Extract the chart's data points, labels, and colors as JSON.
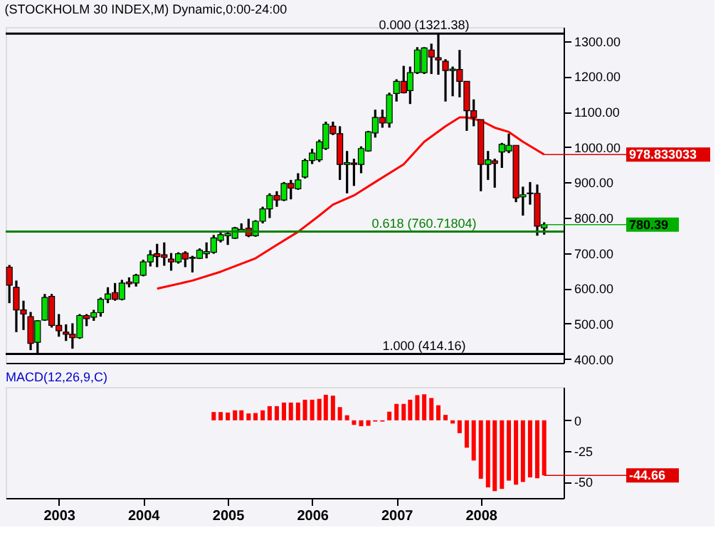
{
  "chart_data": [
    {
      "type": "candlestick",
      "title": "(STOCKHOLM 30 INDEX,M) Dynamic,0:00-24:00",
      "x": [
        "2002-06",
        "2002-07",
        "2002-08",
        "2002-09",
        "2002-10",
        "2002-11",
        "2002-12",
        "2003-01",
        "2003-02",
        "2003-03",
        "2003-04",
        "2003-05",
        "2003-06",
        "2003-07",
        "2003-08",
        "2003-09",
        "2003-10",
        "2003-11",
        "2003-12",
        "2004-01",
        "2004-02",
        "2004-03",
        "2004-04",
        "2004-05",
        "2004-06",
        "2004-07",
        "2004-08",
        "2004-09",
        "2004-10",
        "2004-11",
        "2004-12",
        "2005-01",
        "2005-02",
        "2005-03",
        "2005-04",
        "2005-05",
        "2005-06",
        "2005-07",
        "2005-08",
        "2005-09",
        "2005-10",
        "2005-11",
        "2005-12",
        "2006-01",
        "2006-02",
        "2006-03",
        "2006-04",
        "2006-05",
        "2006-06",
        "2006-07",
        "2006-08",
        "2006-09",
        "2006-10",
        "2006-11",
        "2006-12",
        "2007-01",
        "2007-02",
        "2007-03",
        "2007-04",
        "2007-05",
        "2007-06",
        "2007-07",
        "2007-08",
        "2007-09",
        "2007-10",
        "2007-11",
        "2007-12",
        "2008-01",
        "2008-02",
        "2008-03",
        "2008-04",
        "2008-05",
        "2008-06",
        "2008-07",
        "2008-08",
        "2008-09",
        "2008-10"
      ],
      "ohlc": [
        [
          660,
          666,
          558,
          609
        ],
        [
          603,
          622,
          476,
          539
        ],
        [
          539,
          565,
          482,
          527
        ],
        [
          520,
          533,
          425,
          444
        ],
        [
          447,
          510,
          414.16,
          508
        ],
        [
          510,
          584,
          508,
          574
        ],
        [
          577,
          584,
          489,
          495
        ],
        [
          495,
          527,
          463,
          480
        ],
        [
          476,
          498,
          451,
          470
        ],
        [
          470,
          501,
          429,
          460
        ],
        [
          460,
          527,
          457,
          523
        ],
        [
          523,
          527,
          493,
          514
        ],
        [
          518,
          539,
          508,
          531
        ],
        [
          531,
          574,
          520,
          569
        ],
        [
          569,
          603,
          558,
          584
        ],
        [
          588,
          615,
          565,
          569
        ],
        [
          569,
          624,
          566,
          615
        ],
        [
          618,
          631,
          603,
          613
        ],
        [
          615,
          641,
          605,
          637
        ],
        [
          637,
          681,
          634,
          675
        ],
        [
          675,
          708,
          662,
          695
        ],
        [
          698,
          726,
          660,
          690
        ],
        [
          695,
          730,
          664,
          688
        ],
        [
          683,
          700,
          650,
          675
        ],
        [
          675,
          702,
          670,
          698
        ],
        [
          700,
          705,
          660,
          683
        ],
        [
          685,
          692,
          645,
          688
        ],
        [
          685,
          713,
          683,
          708
        ],
        [
          698,
          730,
          685,
          704
        ],
        [
          702,
          751,
          698,
          743
        ],
        [
          736,
          761,
          730,
          752
        ],
        [
          749,
          759,
          723,
          755
        ],
        [
          742,
          774,
          740,
          771
        ],
        [
          761,
          784,
          759,
          767
        ],
        [
          770,
          797,
          745,
          749
        ],
        [
          749,
          793,
          746,
          790
        ],
        [
          790,
          831,
          784,
          825
        ],
        [
          825,
          869,
          799,
          863
        ],
        [
          863,
          875,
          831,
          850
        ],
        [
          850,
          901,
          847,
          897
        ],
        [
          897,
          907,
          852,
          884
        ],
        [
          882,
          926,
          879,
          907
        ],
        [
          915,
          967,
          911,
          962
        ],
        [
          962,
          995,
          952,
          983
        ],
        [
          964,
          1021,
          958,
          1015
        ],
        [
          996,
          1072,
          992,
          1065
        ],
        [
          1059,
          1072,
          1034,
          1038
        ],
        [
          1038,
          1059,
          907,
          951
        ],
        [
          951,
          989,
          869,
          956
        ],
        [
          955,
          967,
          890,
          951
        ],
        [
          951,
          1002,
          926,
          996
        ],
        [
          989,
          1046,
          987,
          1043
        ],
        [
          1040,
          1106,
          1027,
          1084
        ],
        [
          1084,
          1106,
          1055,
          1068
        ],
        [
          1068,
          1154,
          1055,
          1148
        ],
        [
          1152,
          1192,
          1129,
          1186
        ],
        [
          1186,
          1230,
          1152,
          1154
        ],
        [
          1160,
          1228,
          1122,
          1211
        ],
        [
          1211,
          1283,
          1207,
          1275
        ],
        [
          1211,
          1283,
          1207,
          1281
        ],
        [
          1275,
          1293,
          1207,
          1255
        ],
        [
          1253,
          1321.38,
          1205,
          1247
        ],
        [
          1243,
          1249,
          1129,
          1217
        ],
        [
          1217,
          1228,
          1144,
          1221
        ],
        [
          1220,
          1275,
          1141,
          1186
        ],
        [
          1186,
          1186,
          1046,
          1103
        ],
        [
          1103,
          1135,
          1059,
          1084
        ],
        [
          1078,
          1078,
          875,
          951
        ],
        [
          951,
          989,
          907,
          964
        ],
        [
          961,
          967,
          885,
          954
        ],
        [
          986,
          1012,
          941,
          1008
        ],
        [
          989,
          1038,
          983,
          1005
        ],
        [
          1005,
          1005,
          844,
          856
        ],
        [
          859,
          888,
          806,
          865
        ],
        [
          870,
          901,
          837,
          868
        ],
        [
          869,
          894,
          749,
          776
        ],
        [
          771,
          787,
          752,
          780.39
        ]
      ],
      "colors": [
        "#e00000",
        "#e00000",
        "#e00000",
        "#e00000",
        "#00e000",
        "#00e000",
        "#e00000",
        "#e00000",
        "#e00000",
        "#e00000",
        "#00e000",
        "#e00000",
        "#00e000",
        "#00e000",
        "#00e000",
        "#e00000",
        "#00e000",
        "#e00000",
        "#00e000",
        "#00e000",
        "#00e000",
        "#e00000",
        "#e00000",
        "#e00000",
        "#00e000",
        "#e00000",
        "#00e000",
        "#00e000",
        "#00e000",
        "#00e000",
        "#00e000",
        "#00e000",
        "#00e000",
        "#00e000",
        "#e00000",
        "#00e000",
        "#00e000",
        "#00e000",
        "#e00000",
        "#00e000",
        "#e00000",
        "#00e000",
        "#00e000",
        "#00e000",
        "#00e000",
        "#00e000",
        "#e00000",
        "#e00000",
        "#00e000",
        "#e00000",
        "#00e000",
        "#00e000",
        "#00e000",
        "#e00000",
        "#00e000",
        "#00e000",
        "#e00000",
        "#00e000",
        "#00e000",
        "#00e000",
        "#e00000",
        "#e00000",
        "#e00000",
        "#00e000",
        "#e00000",
        "#e00000",
        "#e00000",
        "#e00000",
        "#00e000",
        "#e00000",
        "#00e000",
        "#00e000",
        "#e00000",
        "#00e000",
        "#e00000",
        "#e00000",
        "#00e000"
      ],
      "series": [
        {
          "type": "line",
          "color": "#ff0000",
          "x": [
            "2004-03",
            "2004-08",
            "2004-12",
            "2005-05",
            "2005-08",
            "2005-11",
            "2006-02",
            "2006-04",
            "2006-07",
            "2006-10",
            "2007-02",
            "2007-05",
            "2007-08",
            "2007-10",
            "2007-11",
            "2008-01",
            "2008-03",
            "2008-05",
            "2008-07",
            "2008-10"
          ],
          "values": [
            599,
            622,
            647,
            685,
            723,
            760,
            806,
            837,
            863,
            901,
            951,
            1015,
            1059,
            1084,
            1084,
            1075,
            1055,
            1043,
            1015,
            978.833033
          ]
        }
      ],
      "xlim": [
        "2002-05-16",
        "2008-12-24"
      ],
      "ylim": [
        389,
        1340
      ],
      "yticks": [
        {
          "value": 400,
          "label": "400.00"
        },
        {
          "value": 500,
          "label": "500.00"
        },
        {
          "value": 600,
          "label": "600.00"
        },
        {
          "value": 700,
          "label": "700.00"
        },
        {
          "value": 800,
          "label": "800.00"
        },
        {
          "value": 900,
          "label": "900.00"
        },
        {
          "value": 1000,
          "label": "1000.00"
        },
        {
          "value": 1100,
          "label": "1100.00"
        },
        {
          "value": 1200,
          "label": "1200.00"
        },
        {
          "value": 1300,
          "label": "1300.00"
        }
      ],
      "tick_labels": "y",
      "grid": false,
      "ref_lines": [
        {
          "axis": "y",
          "value": 1321.38,
          "label": "0.000 (1321.38)",
          "color": "#000000"
        },
        {
          "axis": "y",
          "value": 760.71804,
          "label": "0.618 (760.71804)",
          "color": "#008000"
        },
        {
          "axis": "y",
          "value": 414.16,
          "label": "1.000 (414.16)",
          "color": "#000000"
        }
      ],
      "annotations": [
        {
          "text": "978.833033",
          "x": "2008-10",
          "y": 978.833033
        },
        {
          "text": "780.39",
          "x": "2008-10",
          "y": 780.39
        }
      ]
    },
    {
      "type": "bar",
      "title": "MACD(12,26,9,C)",
      "x": [
        "2004-11",
        "2004-12",
        "2005-01",
        "2005-02",
        "2005-03",
        "2005-04",
        "2005-05",
        "2005-06",
        "2005-07",
        "2005-08",
        "2005-09",
        "2005-10",
        "2005-11",
        "2005-12",
        "2006-01",
        "2006-02",
        "2006-03",
        "2006-04",
        "2006-05",
        "2006-06",
        "2006-07",
        "2006-08",
        "2006-09",
        "2006-10",
        "2006-11",
        "2006-12",
        "2007-01",
        "2007-02",
        "2007-03",
        "2007-04",
        "2007-05",
        "2007-06",
        "2007-07",
        "2007-08",
        "2007-09",
        "2007-10",
        "2007-11",
        "2007-12",
        "2008-01",
        "2008-02",
        "2008-03",
        "2008-04",
        "2008-05",
        "2008-06",
        "2008-07",
        "2008-08",
        "2008-09",
        "2008-10"
      ],
      "values": [
        6.7,
        6.7,
        6.3,
        8.1,
        8.1,
        5.6,
        5.9,
        8.1,
        11.5,
        11.5,
        14.4,
        14.4,
        14.4,
        16.7,
        16.7,
        17.4,
        20.7,
        20,
        10.7,
        4.1,
        -3.7,
        -4.8,
        -4.4,
        -1,
        -1,
        7,
        13.3,
        13.3,
        16.7,
        20.4,
        21.1,
        18.1,
        12.2,
        4.4,
        -2.6,
        -10.4,
        -22.2,
        -32.6,
        -47.4,
        -54.4,
        -57.4,
        -55.6,
        -48.9,
        -52.2,
        -50,
        -46.3,
        -47,
        -44.66
      ],
      "color": "#ff0000",
      "xlim": [
        "2002-05-16",
        "2008-12-24"
      ],
      "xticks": [
        {
          "value": "2003-01",
          "label": "2003"
        },
        {
          "value": "2004-01",
          "label": "2004"
        },
        {
          "value": "2005-01",
          "label": "2005"
        },
        {
          "value": "2006-01",
          "label": "2006"
        },
        {
          "value": "2007-01",
          "label": "2007"
        },
        {
          "value": "2008-01",
          "label": "2008"
        }
      ],
      "ylim": [
        -63,
        27
      ],
      "yticks": [
        0,
        -25,
        -50
      ],
      "grid": false,
      "annotations": [
        {
          "text": "-44.66",
          "x": "2008-10",
          "y": -44.66
        }
      ]
    }
  ]
}
